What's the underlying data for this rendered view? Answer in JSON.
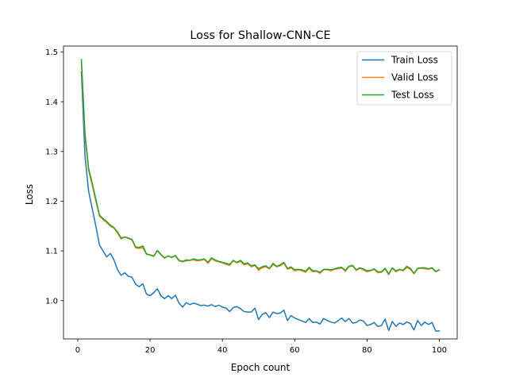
{
  "chart_data": {
    "type": "line",
    "title": "Loss for Shallow-CNN-CE",
    "xlabel": "Epoch count",
    "ylabel": "Loss",
    "xlim": [
      -3.95,
      104.95
    ],
    "ylim": [
      0.923,
      1.512
    ],
    "xticks": [
      0,
      20,
      40,
      60,
      80,
      100
    ],
    "yticks": [
      1.0,
      1.1,
      1.2,
      1.3,
      1.4,
      1.5
    ],
    "xtick_labels": [
      "0",
      "20",
      "40",
      "60",
      "80",
      "100"
    ],
    "ytick_labels": [
      "1.0",
      "1.1",
      "1.2",
      "1.3",
      "1.4",
      "1.5"
    ],
    "grid": false,
    "legend_position": "top-right",
    "x": [
      1,
      2,
      3,
      4,
      5,
      6,
      7,
      8,
      9,
      10,
      11,
      12,
      13,
      14,
      15,
      16,
      17,
      18,
      19,
      20,
      21,
      22,
      23,
      24,
      25,
      26,
      27,
      28,
      29,
      30,
      31,
      32,
      33,
      34,
      35,
      36,
      37,
      38,
      39,
      40,
      41,
      42,
      43,
      44,
      45,
      46,
      47,
      48,
      49,
      50,
      51,
      52,
      53,
      54,
      55,
      56,
      57,
      58,
      59,
      60,
      61,
      62,
      63,
      64,
      65,
      66,
      67,
      68,
      69,
      70,
      71,
      72,
      73,
      74,
      75,
      76,
      77,
      78,
      79,
      80,
      81,
      82,
      83,
      84,
      85,
      86,
      87,
      88,
      89,
      90,
      91,
      92,
      93,
      94,
      95,
      96,
      97,
      98,
      99,
      100
    ],
    "series": [
      {
        "name": "Train Loss",
        "color": "#1f77b4",
        "values": [
          1.46,
          1.29,
          1.22,
          1.185,
          1.15,
          1.112,
          1.1,
          1.088,
          1.095,
          1.082,
          1.062,
          1.051,
          1.056,
          1.049,
          1.047,
          1.033,
          1.028,
          1.034,
          1.013,
          1.01,
          1.016,
          1.024,
          1.01,
          1.004,
          1.01,
          1.004,
          1.011,
          0.995,
          0.987,
          0.996,
          0.992,
          0.995,
          0.993,
          0.99,
          0.991,
          0.989,
          0.992,
          0.988,
          0.991,
          0.987,
          0.985,
          0.978,
          0.986,
          0.988,
          0.984,
          0.978,
          0.977,
          0.977,
          0.985,
          0.962,
          0.972,
          0.976,
          0.966,
          0.977,
          0.974,
          0.975,
          0.981,
          0.96,
          0.97,
          0.965,
          0.962,
          0.959,
          0.956,
          0.964,
          0.956,
          0.957,
          0.953,
          0.964,
          0.96,
          0.957,
          0.955,
          0.96,
          0.965,
          0.958,
          0.964,
          0.955,
          0.956,
          0.961,
          0.959,
          0.95,
          0.952,
          0.956,
          0.948,
          0.95,
          0.963,
          0.94,
          0.958,
          0.948,
          0.955,
          0.952,
          0.957,
          0.954,
          0.941,
          0.96,
          0.95,
          0.957,
          0.952,
          0.956,
          0.939,
          0.939
        ]
      },
      {
        "name": "Valid Loss",
        "color": "#ff7f0e",
        "values": [
          1.48,
          1.33,
          1.262,
          1.232,
          1.2,
          1.17,
          1.163,
          1.157,
          1.15,
          1.146,
          1.136,
          1.124,
          1.128,
          1.125,
          1.122,
          1.106,
          1.105,
          1.107,
          1.093,
          1.092,
          1.09,
          1.1,
          1.092,
          1.085,
          1.09,
          1.087,
          1.09,
          1.08,
          1.078,
          1.08,
          1.081,
          1.082,
          1.08,
          1.081,
          1.083,
          1.075,
          1.084,
          1.08,
          1.078,
          1.076,
          1.073,
          1.071,
          1.08,
          1.076,
          1.079,
          1.072,
          1.074,
          1.068,
          1.071,
          1.061,
          1.066,
          1.068,
          1.064,
          1.073,
          1.068,
          1.07,
          1.075,
          1.063,
          1.066,
          1.06,
          1.062,
          1.06,
          1.057,
          1.065,
          1.058,
          1.059,
          1.055,
          1.062,
          1.062,
          1.06,
          1.063,
          1.064,
          1.066,
          1.059,
          1.068,
          1.07,
          1.061,
          1.065,
          1.062,
          1.058,
          1.06,
          1.063,
          1.056,
          1.057,
          1.064,
          1.052,
          1.065,
          1.058,
          1.062,
          1.06,
          1.067,
          1.063,
          1.054,
          1.064,
          1.065,
          1.064,
          1.063,
          1.065,
          1.058,
          1.062
        ]
      },
      {
        "name": "Test Loss",
        "color": "#2ca02c",
        "values": [
          1.485,
          1.335,
          1.266,
          1.236,
          1.204,
          1.172,
          1.165,
          1.159,
          1.152,
          1.147,
          1.138,
          1.126,
          1.128,
          1.126,
          1.123,
          1.108,
          1.107,
          1.11,
          1.094,
          1.092,
          1.089,
          1.101,
          1.093,
          1.086,
          1.09,
          1.087,
          1.091,
          1.081,
          1.079,
          1.082,
          1.081,
          1.084,
          1.082,
          1.082,
          1.084,
          1.077,
          1.086,
          1.082,
          1.079,
          1.077,
          1.075,
          1.073,
          1.081,
          1.077,
          1.081,
          1.074,
          1.076,
          1.07,
          1.072,
          1.064,
          1.068,
          1.07,
          1.065,
          1.075,
          1.069,
          1.072,
          1.077,
          1.065,
          1.068,
          1.062,
          1.063,
          1.062,
          1.059,
          1.067,
          1.06,
          1.06,
          1.057,
          1.063,
          1.063,
          1.062,
          1.064,
          1.066,
          1.067,
          1.061,
          1.069,
          1.071,
          1.062,
          1.066,
          1.064,
          1.06,
          1.061,
          1.064,
          1.058,
          1.058,
          1.065,
          1.054,
          1.066,
          1.06,
          1.063,
          1.061,
          1.069,
          1.065,
          1.055,
          1.065,
          1.066,
          1.066,
          1.064,
          1.066,
          1.059,
          1.062
        ]
      }
    ]
  }
}
